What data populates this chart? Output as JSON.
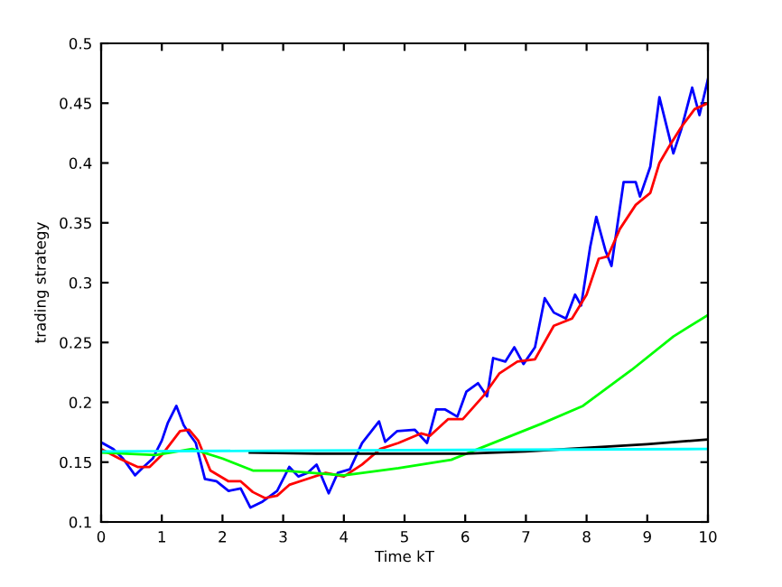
{
  "chart_data": {
    "type": "line",
    "xlabel": "Time kT",
    "ylabel": "trading strategy",
    "xlim": [
      0,
      10
    ],
    "ylim": [
      0.1,
      0.5
    ],
    "xticks": [
      0,
      1,
      2,
      3,
      4,
      5,
      6,
      7,
      8,
      9,
      10
    ],
    "yticks": [
      0.1,
      0.15,
      0.2,
      0.25,
      0.3,
      0.35,
      0.4,
      0.45,
      0.5
    ],
    "grid": false,
    "legend": false,
    "line_style": "solid",
    "marker": "none",
    "series": [
      {
        "color": "#0000ff",
        "x": [
          0.02,
          0.2,
          0.36,
          0.56,
          0.7,
          0.85,
          1.0,
          1.1,
          1.24,
          1.36,
          1.46,
          1.56,
          1.71,
          1.9,
          2.1,
          2.3,
          2.46,
          2.66,
          2.9,
          3.1,
          3.25,
          3.4,
          3.55,
          3.75,
          3.9,
          4.1,
          4.3,
          4.58,
          4.68,
          4.88,
          5.17,
          5.37,
          5.52,
          5.67,
          5.87,
          6.02,
          6.21,
          6.36,
          6.46,
          6.66,
          6.81,
          6.96,
          7.15,
          7.31,
          7.46,
          7.66,
          7.81,
          7.91,
          8.06,
          8.16,
          8.31,
          8.41,
          8.61,
          8.81,
          8.88,
          9.05,
          9.2,
          9.43,
          9.56,
          9.74,
          9.86,
          10.0
        ],
        "values": [
          0.166,
          0.161,
          0.153,
          0.139,
          0.146,
          0.153,
          0.168,
          0.183,
          0.197,
          0.181,
          0.173,
          0.166,
          0.136,
          0.134,
          0.126,
          0.128,
          0.112,
          0.117,
          0.126,
          0.146,
          0.138,
          0.141,
          0.148,
          0.124,
          0.141,
          0.144,
          0.166,
          0.184,
          0.167,
          0.176,
          0.177,
          0.166,
          0.194,
          0.194,
          0.188,
          0.209,
          0.216,
          0.205,
          0.237,
          0.234,
          0.246,
          0.232,
          0.246,
          0.287,
          0.275,
          0.27,
          0.29,
          0.281,
          0.33,
          0.355,
          0.327,
          0.314,
          0.384,
          0.384,
          0.372,
          0.397,
          0.455,
          0.408,
          0.428,
          0.463,
          0.44,
          0.47
        ]
      },
      {
        "color": "#ff0000",
        "x": [
          0,
          0.3,
          0.6,
          0.8,
          1.0,
          1.3,
          1.45,
          1.6,
          1.8,
          2.1,
          2.3,
          2.5,
          2.7,
          2.9,
          3.1,
          3.4,
          3.7,
          4.0,
          4.3,
          4.6,
          4.9,
          5.27,
          5.42,
          5.72,
          5.96,
          6.31,
          6.56,
          6.86,
          7.15,
          7.46,
          7.76,
          8.0,
          8.2,
          8.35,
          8.55,
          8.81,
          9.05,
          9.2,
          9.35,
          9.56,
          9.78,
          10.0
        ],
        "values": [
          0.161,
          0.153,
          0.146,
          0.146,
          0.156,
          0.176,
          0.177,
          0.168,
          0.143,
          0.134,
          0.134,
          0.125,
          0.12,
          0.122,
          0.131,
          0.136,
          0.141,
          0.138,
          0.148,
          0.161,
          0.166,
          0.174,
          0.172,
          0.186,
          0.186,
          0.206,
          0.224,
          0.234,
          0.236,
          0.264,
          0.27,
          0.29,
          0.32,
          0.322,
          0.345,
          0.365,
          0.375,
          0.4,
          0.413,
          0.43,
          0.445,
          0.45
        ]
      },
      {
        "color": "#00ff00",
        "x": [
          0,
          0.9,
          1.5,
          2.0,
          2.5,
          3.0,
          4.0,
          4.9,
          5.77,
          6.26,
          7.25,
          7.94,
          8.74,
          9.43,
          10.0
        ],
        "values": [
          0.158,
          0.156,
          0.161,
          0.153,
          0.143,
          0.143,
          0.139,
          0.145,
          0.152,
          0.162,
          0.182,
          0.197,
          0.227,
          0.255,
          0.273
        ]
      },
      {
        "color": "#000000",
        "x": [
          2.45,
          3.55,
          6.0,
          7.0,
          8.0,
          9.0,
          10.0
        ],
        "values": [
          0.158,
          0.157,
          0.157,
          0.159,
          0.162,
          0.165,
          0.169
        ]
      },
      {
        "color": "#00ffff",
        "x": [
          0,
          5,
          10
        ],
        "values": [
          0.159,
          0.16,
          0.161
        ]
      }
    ]
  }
}
